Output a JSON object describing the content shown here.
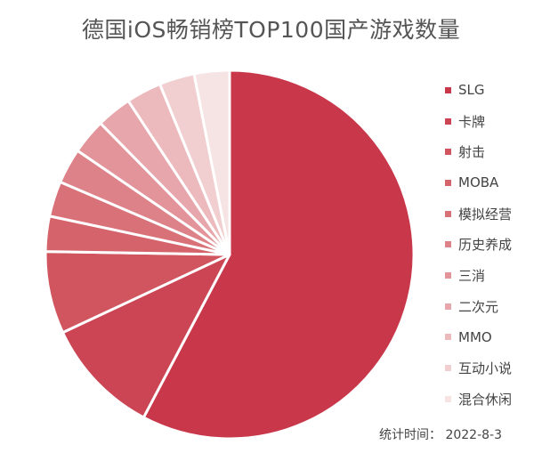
{
  "chart_data": {
    "type": "pie",
    "title": "德国iOS畅销榜TOP100国产游戏数量",
    "slices": [
      {
        "label": "SLG",
        "value": 56,
        "color": "#c8374a"
      },
      {
        "label": "卡牌",
        "value": 10,
        "color": "#cc4554"
      },
      {
        "label": "射击",
        "value": 7,
        "color": "#d1555f"
      },
      {
        "label": "MOBA",
        "value": 3,
        "color": "#d5636b"
      },
      {
        "label": "模拟经营",
        "value": 3,
        "color": "#d97178"
      },
      {
        "label": "历史养成",
        "value": 3,
        "color": "#de828a"
      },
      {
        "label": "三消",
        "value": 3,
        "color": "#e2949a"
      },
      {
        "label": "二次元",
        "value": 3,
        "color": "#e7a6ab"
      },
      {
        "label": "MMO",
        "value": 3,
        "color": "#ecbabd"
      },
      {
        "label": "互动小说",
        "value": 3,
        "color": "#f1cfd1"
      },
      {
        "label": "混合休闲",
        "value": 3,
        "color": "#f6e3e4"
      }
    ],
    "legend_position": "right",
    "start": "top",
    "direction": "clockwise"
  },
  "footnote": "统计时间：  2022-8-3"
}
